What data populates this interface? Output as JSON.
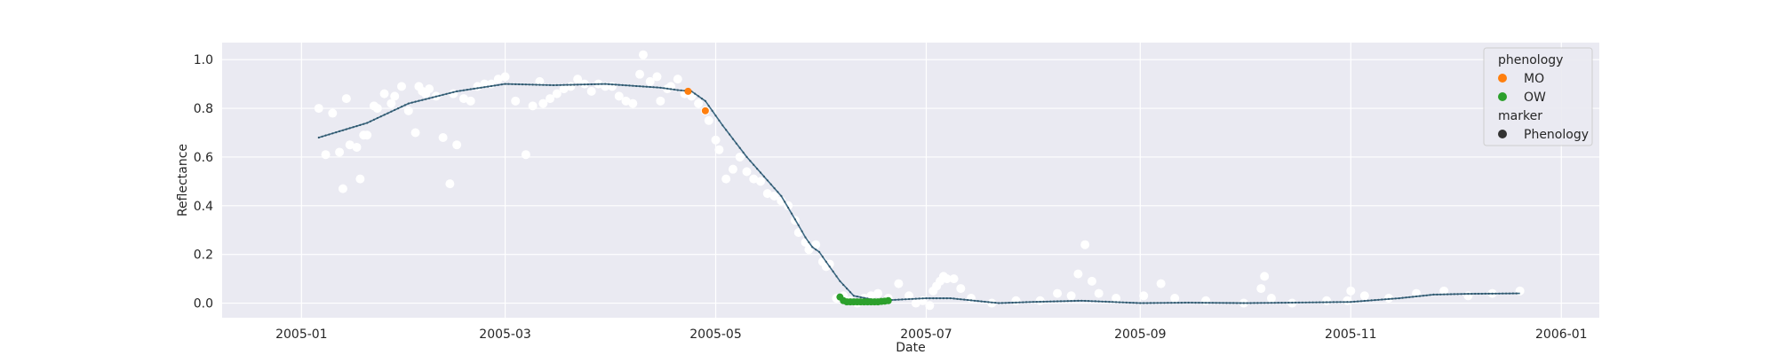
{
  "chart_data": {
    "type": "scatter",
    "xlabel": "Date",
    "ylabel": "Reflectance",
    "xlim": [
      "2004-12-09",
      "2006-01-12"
    ],
    "ylim": [
      -0.06,
      1.07
    ],
    "grid": true,
    "x_ticks": [
      {
        "date": "2005-01-01",
        "label": "2005-01"
      },
      {
        "date": "2005-03-01",
        "label": "2005-03"
      },
      {
        "date": "2005-05-01",
        "label": "2005-05"
      },
      {
        "date": "2005-07-01",
        "label": "2005-07"
      },
      {
        "date": "2005-09-01",
        "label": "2005-09"
      },
      {
        "date": "2005-11-01",
        "label": "2005-11"
      },
      {
        "date": "2006-01-01",
        "label": "2006-01"
      }
    ],
    "y_ticks": [
      {
        "value": 0.0,
        "label": "0.0"
      },
      {
        "value": 0.2,
        "label": "0.2"
      },
      {
        "value": 0.4,
        "label": "0.4"
      },
      {
        "value": 0.6,
        "label": "0.6"
      },
      {
        "value": 0.8,
        "label": "0.8"
      },
      {
        "value": 1.0,
        "label": "1.0"
      }
    ],
    "colors": {
      "background": "#eaeaf2",
      "grid": "#ffffff",
      "curve": "#3d6a84",
      "raw": "#ffffff",
      "MO": "#ff7f0e",
      "OW": "#2ca02c",
      "marker": "#333333"
    },
    "raw_observations": {
      "x": [
        "2005-01-06",
        "2005-01-08",
        "2005-01-10",
        "2005-01-12",
        "2005-01-13",
        "2005-01-14",
        "2005-01-15",
        "2005-01-17",
        "2005-01-18",
        "2005-01-19",
        "2005-01-20",
        "2005-01-22",
        "2005-01-23",
        "2005-01-25",
        "2005-01-27",
        "2005-01-28",
        "2005-01-30",
        "2005-02-01",
        "2005-02-03",
        "2005-02-04",
        "2005-02-05",
        "2005-02-06",
        "2005-02-07",
        "2005-02-09",
        "2005-02-11",
        "2005-02-13",
        "2005-02-14",
        "2005-02-15",
        "2005-02-17",
        "2005-02-19",
        "2005-02-21",
        "2005-02-23",
        "2005-02-25",
        "2005-02-27",
        "2005-03-01",
        "2005-03-04",
        "2005-03-07",
        "2005-03-09",
        "2005-03-11",
        "2005-03-12",
        "2005-03-14",
        "2005-03-16",
        "2005-03-18",
        "2005-03-20",
        "2005-03-22",
        "2005-03-24",
        "2005-03-26",
        "2005-03-28",
        "2005-03-30",
        "2005-04-01",
        "2005-04-03",
        "2005-04-05",
        "2005-04-07",
        "2005-04-09",
        "2005-04-10",
        "2005-04-12",
        "2005-04-14",
        "2005-04-15",
        "2005-04-17",
        "2005-04-18",
        "2005-04-20",
        "2005-04-22",
        "2005-04-24",
        "2005-04-26",
        "2005-04-28",
        "2005-04-29",
        "2005-05-01",
        "2005-05-02",
        "2005-05-04",
        "2005-05-06",
        "2005-05-08",
        "2005-05-10",
        "2005-05-12",
        "2005-05-14",
        "2005-05-16",
        "2005-05-18",
        "2005-05-20",
        "2005-05-22",
        "2005-05-24",
        "2005-05-25",
        "2005-05-27",
        "2005-05-28",
        "2005-05-30",
        "2005-06-01",
        "2005-06-02",
        "2005-06-03",
        "2005-06-05",
        "2005-06-07",
        "2005-06-09",
        "2005-06-11",
        "2005-06-13",
        "2005-06-15",
        "2005-06-17",
        "2005-06-20",
        "2005-06-23",
        "2005-06-26",
        "2005-06-28",
        "2005-06-30",
        "2005-07-02",
        "2005-07-03",
        "2005-07-04",
        "2005-07-05",
        "2005-07-06",
        "2005-07-07",
        "2005-07-09",
        "2005-07-11",
        "2005-07-14",
        "2005-07-20",
        "2005-07-27",
        "2005-08-03",
        "2005-08-08",
        "2005-08-12",
        "2005-08-14",
        "2005-08-16",
        "2005-08-18",
        "2005-08-20",
        "2005-08-25",
        "2005-09-02",
        "2005-09-07",
        "2005-09-11",
        "2005-09-20",
        "2005-10-01",
        "2005-10-06",
        "2005-10-07",
        "2005-10-09",
        "2005-10-15",
        "2005-10-25",
        "2005-10-31",
        "2005-11-01",
        "2005-11-05",
        "2005-11-12",
        "2005-11-20",
        "2005-11-28",
        "2005-12-05",
        "2005-12-12",
        "2005-12-20"
      ],
      "y": [
        0.8,
        0.61,
        0.78,
        0.62,
        0.47,
        0.84,
        0.65,
        0.64,
        0.51,
        0.69,
        0.69,
        0.81,
        0.8,
        0.86,
        0.82,
        0.85,
        0.89,
        0.79,
        0.7,
        0.89,
        0.87,
        0.86,
        0.88,
        0.85,
        0.68,
        0.49,
        0.86,
        0.65,
        0.84,
        0.83,
        0.89,
        0.9,
        0.9,
        0.92,
        0.93,
        0.83,
        0.61,
        0.81,
        0.91,
        0.82,
        0.84,
        0.86,
        0.88,
        0.89,
        0.92,
        0.9,
        0.87,
        0.9,
        0.89,
        0.89,
        0.85,
        0.83,
        0.82,
        0.94,
        1.02,
        0.91,
        0.93,
        0.83,
        0.88,
        0.89,
        0.92,
        0.86,
        0.85,
        0.82,
        0.79,
        0.75,
        0.67,
        0.63,
        0.51,
        0.55,
        0.6,
        0.54,
        0.51,
        0.5,
        0.45,
        0.44,
        0.42,
        0.4,
        0.34,
        0.29,
        0.25,
        0.22,
        0.24,
        0.17,
        0.15,
        0.16,
        0.02,
        0.03,
        0.01,
        0.0,
        0.02,
        0.03,
        0.04,
        0.02,
        0.08,
        0.03,
        0.0,
        0.01,
        -0.01,
        0.05,
        0.07,
        0.09,
        0.11,
        0.1,
        0.1,
        0.06,
        0.02,
        0.0,
        0.01,
        0.01,
        0.04,
        0.03,
        0.12,
        0.24,
        0.09,
        0.04,
        0.02,
        0.03,
        0.08,
        0.02,
        0.01,
        0.0,
        0.06,
        0.11,
        0.02,
        0.0,
        0.01,
        0.01,
        0.05,
        0.03,
        0.02,
        0.04,
        0.05,
        0.03,
        0.04,
        0.05
      ]
    },
    "fitted_curve": {
      "x": [
        "2005-01-06",
        "2005-01-20",
        "2005-02-01",
        "2005-02-15",
        "2005-03-01",
        "2005-03-15",
        "2005-03-30",
        "2005-04-15",
        "2005-04-20",
        "2005-04-24",
        "2005-04-28",
        "2005-05-03",
        "2005-05-10",
        "2005-05-15",
        "2005-05-20",
        "2005-05-25",
        "2005-05-27",
        "2005-05-29",
        "2005-05-31",
        "2005-06-03",
        "2005-06-06",
        "2005-06-10",
        "2005-06-17",
        "2005-06-24",
        "2005-07-01",
        "2005-07-08",
        "2005-07-15",
        "2005-07-22",
        "2005-08-01",
        "2005-08-15",
        "2005-09-01",
        "2005-09-15",
        "2005-10-01",
        "2005-10-15",
        "2005-11-01",
        "2005-11-15",
        "2005-11-25",
        "2005-12-05",
        "2005-12-20"
      ],
      "y": [
        0.68,
        0.74,
        0.82,
        0.87,
        0.9,
        0.895,
        0.9,
        0.885,
        0.875,
        0.87,
        0.83,
        0.73,
        0.6,
        0.52,
        0.44,
        0.32,
        0.27,
        0.23,
        0.21,
        0.15,
        0.09,
        0.03,
        0.01,
        0.015,
        0.02,
        0.02,
        0.01,
        0.0,
        0.005,
        0.01,
        0.0,
        0.002,
        0.0,
        0.002,
        0.005,
        0.02,
        0.035,
        0.038,
        0.04
      ]
    },
    "series": [
      {
        "name": "MO",
        "x": [
          "2005-04-23",
          "2005-04-28"
        ],
        "y": [
          0.87,
          0.79
        ]
      },
      {
        "name": "OW",
        "x": [
          "2005-06-06",
          "2005-06-07",
          "2005-06-08",
          "2005-06-09",
          "2005-06-10",
          "2005-06-11",
          "2005-06-12",
          "2005-06-13",
          "2005-06-14",
          "2005-06-15",
          "2005-06-16",
          "2005-06-17",
          "2005-06-18",
          "2005-06-19",
          "2005-06-20"
        ],
        "y": [
          0.025,
          0.01,
          0.005,
          0.005,
          0.005,
          0.005,
          0.005,
          0.005,
          0.005,
          0.005,
          0.005,
          0.005,
          0.007,
          0.008,
          0.01
        ]
      }
    ],
    "legend": {
      "position": "top-right",
      "title_hue": "phenology",
      "hue_entries": [
        "MO",
        "OW"
      ],
      "title_style": "marker",
      "style_entries": [
        "Phenology"
      ]
    }
  }
}
